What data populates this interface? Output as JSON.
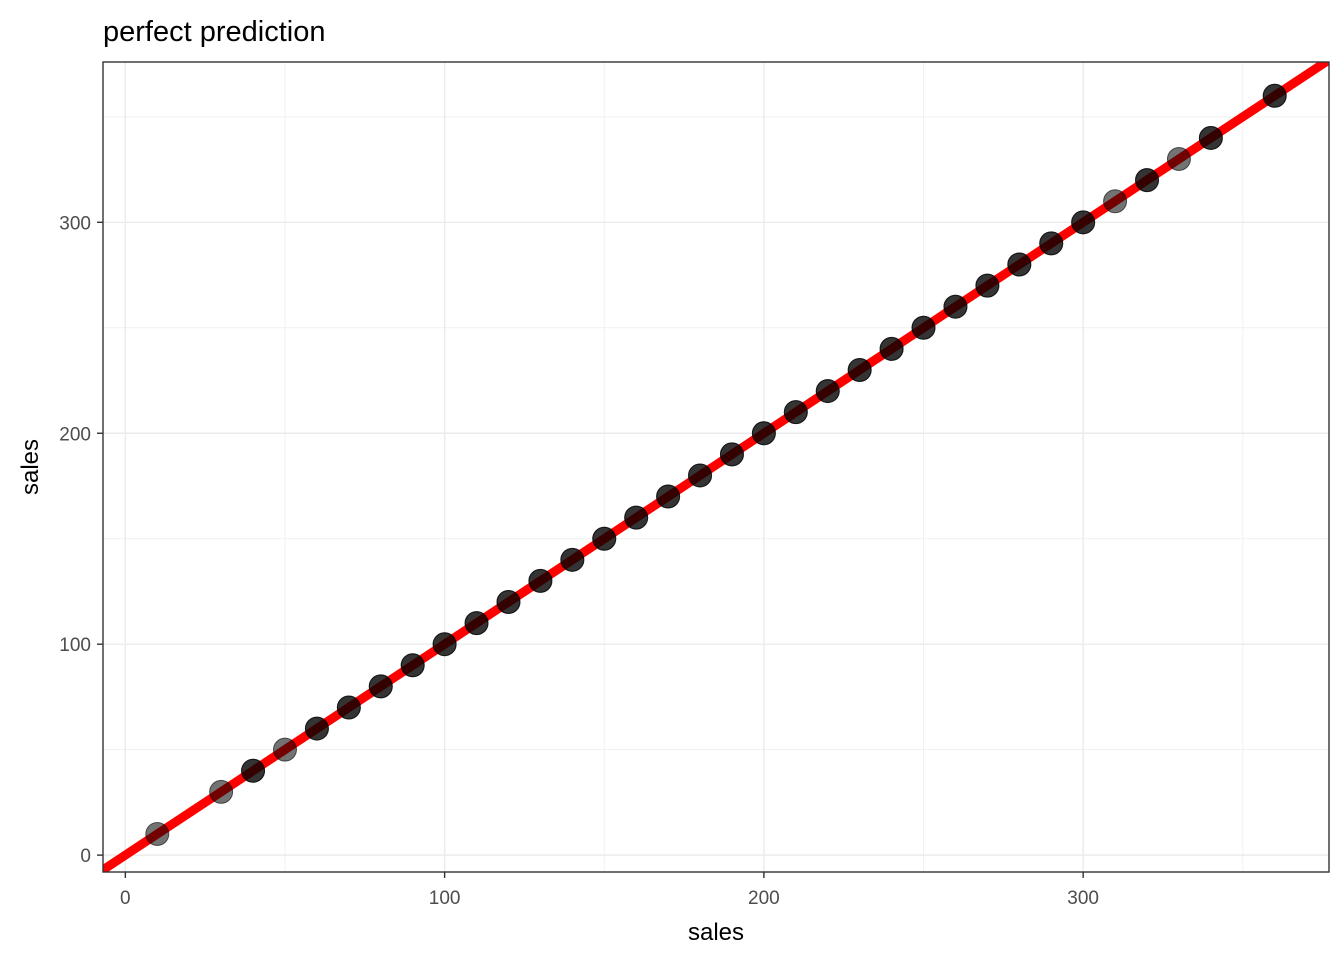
{
  "chart_data": {
    "type": "scatter",
    "title": "perfect prediction",
    "xlabel": "sales",
    "ylabel": "sales",
    "xlim": [
      -7,
      377
    ],
    "ylim": [
      -8,
      376
    ],
    "x_ticks": [
      0,
      100,
      200,
      300
    ],
    "y_ticks": [
      0,
      100,
      200,
      300
    ],
    "x_tick_labels": [
      "0",
      "100",
      "200",
      "300"
    ],
    "y_tick_labels": [
      "0",
      "100",
      "200",
      "300"
    ],
    "minor_grid": [
      50,
      150,
      250,
      350
    ],
    "grid": true,
    "reference_line": {
      "type": "identity",
      "slope": 1,
      "intercept": 0,
      "color": "#ff0000"
    },
    "point_color": "#000000",
    "points": [
      {
        "x": 10,
        "y": 10,
        "overlap": 1
      },
      {
        "x": 30,
        "y": 30,
        "overlap": 1
      },
      {
        "x": 40,
        "y": 40,
        "overlap": 2
      },
      {
        "x": 50,
        "y": 50,
        "overlap": 1
      },
      {
        "x": 60,
        "y": 60,
        "overlap": 2
      },
      {
        "x": 70,
        "y": 70,
        "overlap": 2
      },
      {
        "x": 80,
        "y": 80,
        "overlap": 2
      },
      {
        "x": 90,
        "y": 90,
        "overlap": 2
      },
      {
        "x": 100,
        "y": 100,
        "overlap": 2
      },
      {
        "x": 110,
        "y": 110,
        "overlap": 2
      },
      {
        "x": 120,
        "y": 120,
        "overlap": 2
      },
      {
        "x": 130,
        "y": 130,
        "overlap": 2
      },
      {
        "x": 140,
        "y": 140,
        "overlap": 2
      },
      {
        "x": 150,
        "y": 150,
        "overlap": 2
      },
      {
        "x": 160,
        "y": 160,
        "overlap": 2
      },
      {
        "x": 170,
        "y": 170,
        "overlap": 2
      },
      {
        "x": 180,
        "y": 180,
        "overlap": 2
      },
      {
        "x": 190,
        "y": 190,
        "overlap": 2
      },
      {
        "x": 200,
        "y": 200,
        "overlap": 2
      },
      {
        "x": 210,
        "y": 210,
        "overlap": 2
      },
      {
        "x": 220,
        "y": 220,
        "overlap": 2
      },
      {
        "x": 230,
        "y": 230,
        "overlap": 2
      },
      {
        "x": 240,
        "y": 240,
        "overlap": 2
      },
      {
        "x": 250,
        "y": 250,
        "overlap": 2
      },
      {
        "x": 260,
        "y": 260,
        "overlap": 2
      },
      {
        "x": 270,
        "y": 270,
        "overlap": 2
      },
      {
        "x": 280,
        "y": 280,
        "overlap": 2
      },
      {
        "x": 290,
        "y": 290,
        "overlap": 2
      },
      {
        "x": 300,
        "y": 300,
        "overlap": 2
      },
      {
        "x": 310,
        "y": 310,
        "overlap": 1
      },
      {
        "x": 320,
        "y": 320,
        "overlap": 2
      },
      {
        "x": 330,
        "y": 330,
        "overlap": 1
      },
      {
        "x": 340,
        "y": 340,
        "overlap": 2
      },
      {
        "x": 360,
        "y": 360,
        "overlap": 2
      }
    ]
  }
}
